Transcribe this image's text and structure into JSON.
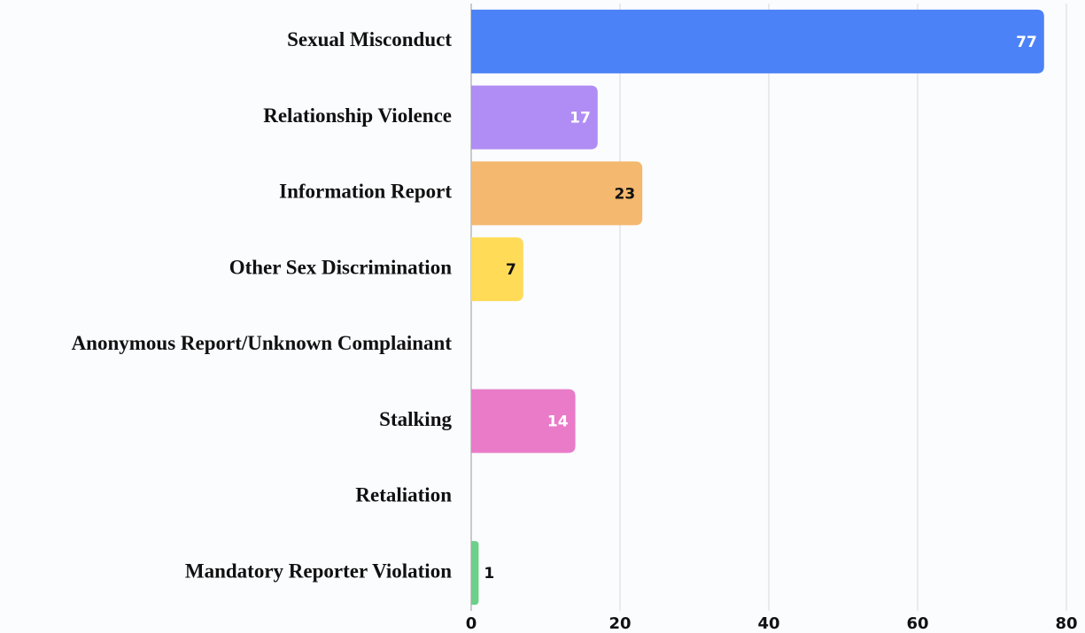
{
  "chart_data": {
    "type": "bar",
    "orientation": "horizontal",
    "categories": [
      "Sexual Misconduct",
      "Relationship Violence",
      "Information Report",
      "Other Sex Discrimination",
      "Anonymous Report/Unknown Complainant",
      "Stalking",
      "Retaliation",
      "Mandatory Reporter Violation"
    ],
    "values": [
      77,
      17,
      23,
      7,
      null,
      14,
      null,
      1
    ],
    "colors": [
      "#4c82f7",
      "#b08cf5",
      "#f4b86e",
      "#ffdb58",
      "#999999",
      "#e97bc8",
      "#999999",
      "#6ccf8a"
    ],
    "label_colors": [
      "#ffffff",
      "#ffffff",
      "#111111",
      "#111111",
      "#111111",
      "#ffffff",
      "#111111",
      "#111111"
    ],
    "xlim": [
      0,
      80
    ],
    "xticks": [
      0,
      20,
      40,
      60,
      80
    ],
    "grid": true
  }
}
